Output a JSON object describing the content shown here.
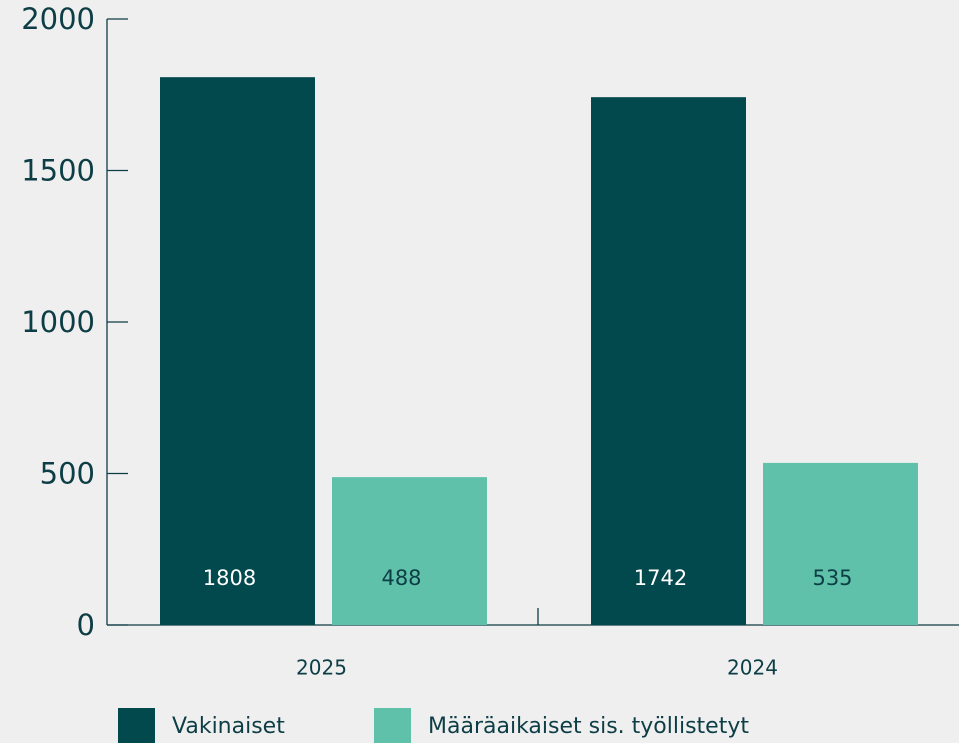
{
  "chart_data": {
    "type": "bar",
    "categories": [
      "2025",
      "2024"
    ],
    "series": [
      {
        "name": "Vakinaiset",
        "color": "#02494e",
        "values": [
          1808,
          1742
        ]
      },
      {
        "name": "Määräaikaiset sis. työllistetyt",
        "color": "#5fc1aa",
        "values": [
          488,
          535
        ]
      }
    ],
    "ylim": [
      0,
      2000
    ],
    "yticks": [
      0,
      500,
      1000,
      1500,
      2000
    ]
  }
}
